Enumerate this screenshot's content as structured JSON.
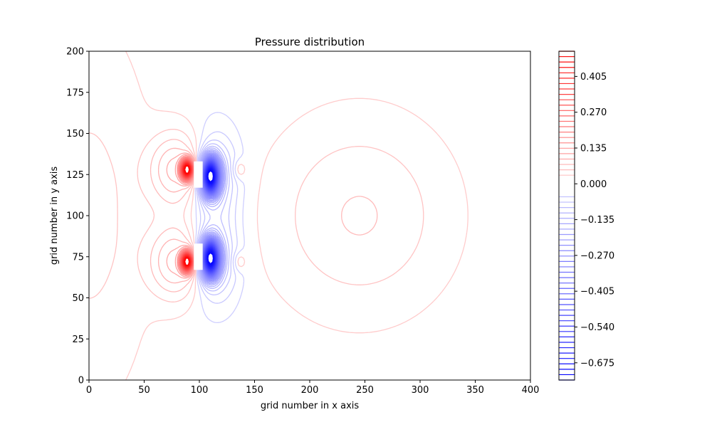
{
  "chart_data": {
    "type": "contour",
    "title": "Pressure distribution",
    "xlabel": "grid number in x axis",
    "ylabel": "grid number in y axis",
    "xlim": [
      0,
      400
    ],
    "ylim": [
      0,
      200
    ],
    "x_ticks": [
      0,
      50,
      100,
      150,
      200,
      250,
      300,
      350,
      400
    ],
    "y_ticks": [
      0,
      25,
      50,
      75,
      100,
      125,
      150,
      175,
      200
    ],
    "colormap": "bwr",
    "colors": {
      "negative": "#0000ff",
      "positive": "#ff0000",
      "neutral": "#ffffff"
    },
    "colorbar": {
      "range": [
        -0.74,
        0.5
      ],
      "ticks": [
        0.405,
        0.27,
        0.135,
        0.0,
        -0.135,
        -0.27,
        -0.405,
        -0.54,
        -0.675
      ],
      "tick_labels": [
        "0.405",
        "0.270",
        "0.135",
        "0.000",
        "−0.135",
        "−0.270",
        "−0.405",
        "−0.540",
        "−0.675"
      ]
    },
    "obstacles": [
      {
        "x_range": [
          95,
          103
        ],
        "y_range": [
          117,
          133
        ]
      },
      {
        "x_range": [
          95,
          103
        ],
        "y_range": [
          67,
          83
        ]
      }
    ],
    "features": [
      {
        "kind": "high_pressure",
        "near": [
          90,
          128
        ]
      },
      {
        "kind": "high_pressure",
        "near": [
          90,
          72
        ]
      },
      {
        "kind": "low_pressure",
        "near": [
          110,
          125
        ]
      },
      {
        "kind": "low_pressure",
        "near": [
          110,
          73
        ]
      },
      {
        "kind": "vortex",
        "near": [
          240,
          100
        ]
      }
    ]
  }
}
